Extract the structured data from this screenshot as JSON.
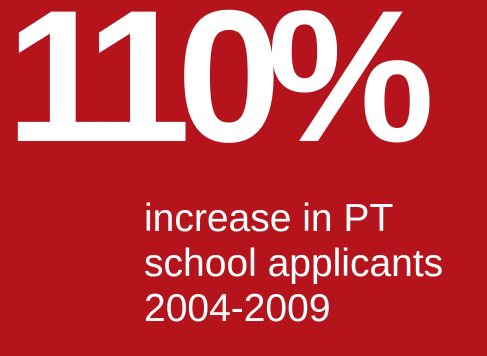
{
  "stat": {
    "value": "110%",
    "caption_lines": [
      "increase in PT",
      "school applicants",
      "2004-2009"
    ]
  },
  "colors": {
    "background": "#b5141c",
    "text": "#ffffff"
  }
}
